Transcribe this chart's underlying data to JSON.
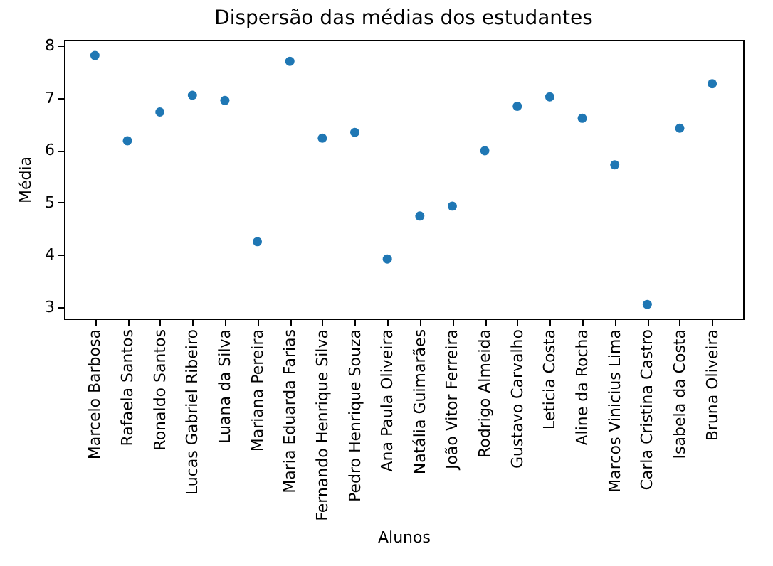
{
  "chart_data": {
    "type": "scatter",
    "title": "Dispersão das médias dos estudantes",
    "xlabel": "Alunos",
    "ylabel": "Média",
    "categories": [
      "Marcelo Barbosa",
      "Rafaela Santos",
      "Ronaldo Santos",
      "Lucas Gabriel Ribeiro",
      "Luana da Silva",
      "Mariana Pereira",
      "Maria Eduarda Farias",
      "Fernando Henrique Silva",
      "Pedro Henrique Souza",
      "Ana Paula Oliveira",
      "Natália Guimarães",
      "João Vitor Ferreira",
      "Rodrigo Almeida",
      "Gustavo Carvalho",
      "Leticia Costa",
      "Aline da Rocha",
      "Marcos Vinicius Lima",
      "Carla Cristina Castro",
      "Isabela da Costa",
      "Bruna Oliveira"
    ],
    "series": [
      {
        "color": "#1f77b4",
        "values": [
          7.81,
          6.18,
          6.73,
          7.05,
          6.95,
          4.25,
          7.7,
          6.23,
          6.34,
          3.92,
          4.74,
          4.93,
          5.99,
          6.84,
          7.02,
          6.61,
          5.72,
          3.05,
          6.42,
          7.27
        ]
      }
    ],
    "ylim": [
      2.78,
      8.11
    ],
    "yticks": [
      3,
      4,
      5,
      6,
      7,
      8
    ],
    "grid": false,
    "legend": false,
    "marker": "circle"
  }
}
